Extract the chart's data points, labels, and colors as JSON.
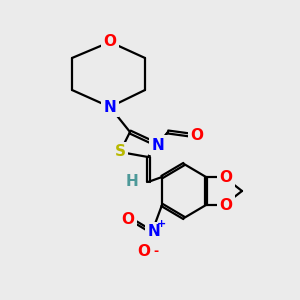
{
  "background_color": "#ebebeb",
  "atom_colors": {
    "C": "#000000",
    "N": "#0000ff",
    "O": "#ff0000",
    "S": "#b8b800",
    "H": "#4d9999"
  },
  "bond_color": "#000000",
  "figsize": [
    3.0,
    3.0
  ],
  "dpi": 100,
  "lw": 1.6,
  "fs": 11
}
